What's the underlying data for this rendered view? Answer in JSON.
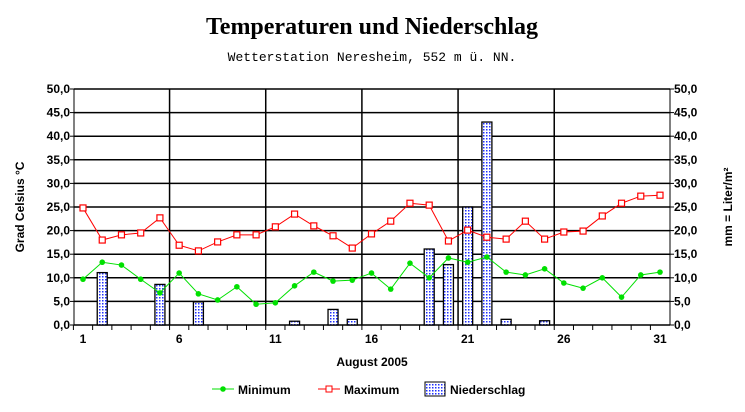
{
  "chart_data": {
    "type": "bar+line",
    "title": "Temperaturen und Niederschlag",
    "subtitle": "Wetterstation Neresheim, 552 m ü. NN.",
    "xlabel": "August 2005",
    "ylabel": "Grad Celsius °C",
    "y2label": "mm = Liter/m²",
    "ylim": [
      0,
      50
    ],
    "y2lim": [
      0,
      50
    ],
    "yticks": [
      "0,0",
      "5,0",
      "10,0",
      "15,0",
      "20,0",
      "25,0",
      "30,0",
      "35,0",
      "40,0",
      "45,0",
      "50,0"
    ],
    "xticks": [
      "1",
      "6",
      "11",
      "16",
      "21",
      "26",
      "31"
    ],
    "x": [
      1,
      2,
      3,
      4,
      5,
      6,
      7,
      8,
      9,
      10,
      11,
      12,
      13,
      14,
      15,
      16,
      17,
      18,
      19,
      20,
      21,
      22,
      23,
      24,
      25,
      26,
      27,
      28,
      29,
      30,
      31
    ],
    "series": [
      {
        "name": "Minimum",
        "type": "line",
        "color": "#00e000",
        "values": [
          9.7,
          13.3,
          12.7,
          9.7,
          6.8,
          11.0,
          6.6,
          5.3,
          8.1,
          4.4,
          4.7,
          8.3,
          11.2,
          9.3,
          9.5,
          11.0,
          7.6,
          13.1,
          10.0,
          14.2,
          13.3,
          14.4,
          11.2,
          10.6,
          11.9,
          8.9,
          7.8,
          10.0,
          5.9,
          10.6,
          11.2
        ]
      },
      {
        "name": "Maximum",
        "type": "line",
        "color": "#ff0000",
        "values": [
          24.8,
          18.0,
          19.1,
          19.5,
          22.7,
          16.9,
          15.7,
          17.6,
          19.1,
          19.1,
          20.8,
          23.5,
          21.0,
          18.9,
          16.3,
          19.3,
          22.0,
          25.8,
          25.4,
          17.8,
          20.1,
          18.6,
          18.2,
          22.0,
          18.2,
          19.7,
          19.9,
          23.1,
          25.8,
          27.3,
          27.5
        ]
      },
      {
        "name": "Niederschlag",
        "type": "bar",
        "color": "#3030ff",
        "values": [
          0,
          11.1,
          0,
          0,
          8.6,
          0,
          4.9,
          0,
          0,
          0,
          0,
          0.8,
          0,
          3.3,
          1.2,
          0,
          0,
          0,
          16.1,
          12.8,
          25.0,
          43.0,
          1.2,
          0,
          0.9,
          0,
          0,
          0,
          0,
          0,
          0
        ]
      }
    ],
    "legend": "bottom"
  }
}
